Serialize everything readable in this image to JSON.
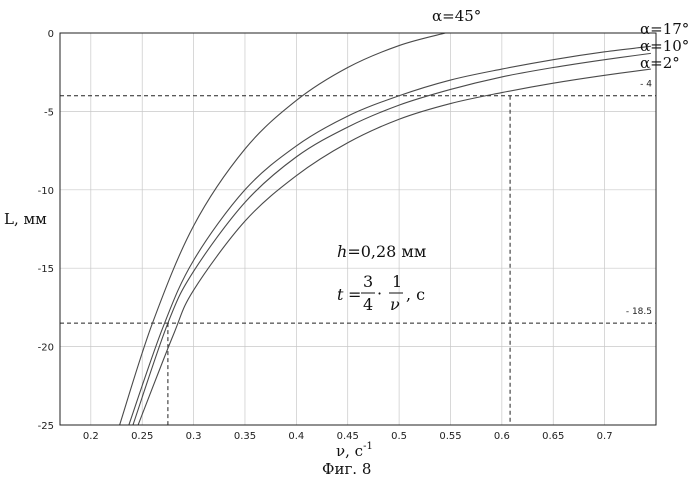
{
  "chart_data": {
    "type": "line",
    "xlabel": "ν, c",
    "xlabel_sup": "-1",
    "ylabel": "L, мм",
    "xlim": [
      0.17,
      0.75
    ],
    "ylim": [
      -25,
      0
    ],
    "xticks": [
      0.2,
      0.25,
      0.3,
      0.35,
      0.4,
      0.45,
      0.5,
      0.55,
      0.6,
      0.65,
      0.7
    ],
    "xtick_labels": [
      "0.2",
      "0.25",
      "0.3",
      "0.35",
      "0.4",
      "0.45",
      "0.5",
      "0.55",
      "0.6",
      "0.65",
      "0.7"
    ],
    "yticks": [
      0,
      -5,
      -10,
      -15,
      -20,
      -25
    ],
    "ytick_labels": [
      "0",
      "-5",
      "-10",
      "-15",
      "-20",
      "-25"
    ],
    "grid": true,
    "caption": "Фиг. 8",
    "series": [
      {
        "name": "α=45°",
        "x": [
          0.228,
          0.26,
          0.3,
          0.35,
          0.4,
          0.45,
          0.5,
          0.545
        ],
        "y": [
          -25,
          -18.5,
          -12.3,
          -7.4,
          -4.3,
          -2.2,
          -0.8,
          0
        ]
      },
      {
        "name": "α=17°",
        "x": [
          0.237,
          0.27,
          0.3,
          0.35,
          0.4,
          0.45,
          0.5,
          0.55,
          0.6,
          0.65,
          0.7,
          0.745
        ],
        "y": [
          -25,
          -18.8,
          -14.5,
          -10.0,
          -7.2,
          -5.3,
          -4.0,
          -3.0,
          -2.3,
          -1.7,
          -1.2,
          -0.85
        ]
      },
      {
        "name": "α=10°",
        "x": [
          0.241,
          0.275,
          0.3,
          0.35,
          0.4,
          0.45,
          0.5,
          0.55,
          0.6,
          0.65,
          0.7,
          0.745
        ],
        "y": [
          -25,
          -18.5,
          -15.2,
          -10.8,
          -7.9,
          -6.0,
          -4.6,
          -3.6,
          -2.8,
          -2.2,
          -1.7,
          -1.3
        ]
      },
      {
        "name": "α=2°",
        "x": [
          0.246,
          0.28,
          0.3,
          0.35,
          0.4,
          0.45,
          0.5,
          0.55,
          0.6,
          0.65,
          0.7,
          0.745
        ],
        "y": [
          -25,
          -19.3,
          -16.4,
          -12.0,
          -9.1,
          -7.0,
          -5.5,
          -4.5,
          -3.8,
          -3.2,
          -2.7,
          -2.3
        ]
      }
    ],
    "reference_lines": {
      "horizontal": [
        {
          "y": -4,
          "label": "- 4"
        },
        {
          "y": -18.5,
          "label": "- 18.5"
        }
      ],
      "vertical": [
        {
          "x": 0.275,
          "to_y": -18.5
        },
        {
          "x": 0.608,
          "to_y": -4
        }
      ]
    },
    "annotation": {
      "h_var": "h",
      "h_text": "=0,28 мм",
      "t_var": "t",
      "eq": "=",
      "num1": "3",
      "den1": "4",
      "dot": "·",
      "num2": "1",
      "den2": "ν",
      "unit": ",  c"
    }
  }
}
